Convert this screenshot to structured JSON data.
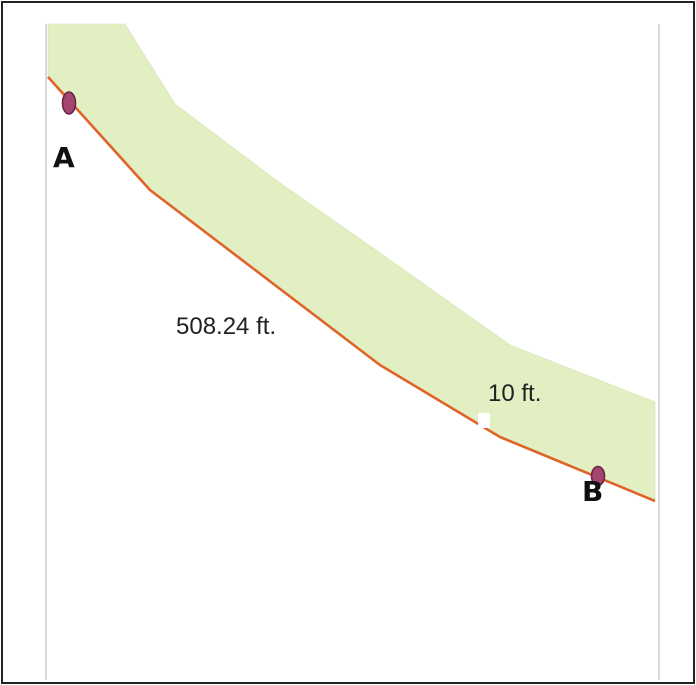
{
  "diagram": {
    "point_a_label": "A",
    "point_b_label": "B",
    "length_label": "508.24 ft.",
    "width_label": "10 ft."
  },
  "colors": {
    "strip_fill": "#e1efc2",
    "boundary_line": "#e0642a",
    "point_marker": "#a3456f",
    "point_marker_stroke": "#6a2348",
    "frame": "#222222",
    "guide_lines": "#bdbdbd"
  },
  "icons": {
    "point_marker": "ellipse-marker"
  }
}
